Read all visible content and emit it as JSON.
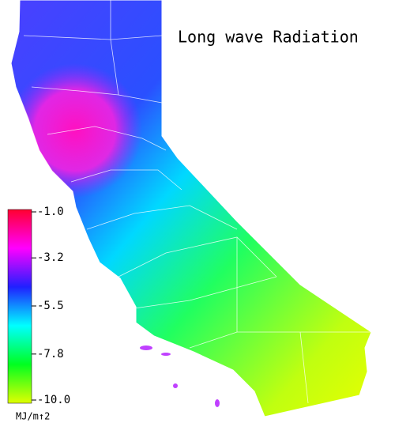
{
  "title": "Long wave Radiation",
  "colorbar": {
    "label": "MJ/m↑2",
    "range": [
      -10,
      -1
    ],
    "ticks": [
      {
        "value": -1,
        "label": "-1.0"
      },
      -3.2,
      -5.5,
      -7.8,
      {
        "value": -10,
        "label": "-10.0"
      }
    ],
    "colors": [
      "#ff0030",
      "#ff00ff",
      "#2020ff",
      "#00ffff",
      "#00ff20",
      "#e0ff00"
    ]
  }
}
